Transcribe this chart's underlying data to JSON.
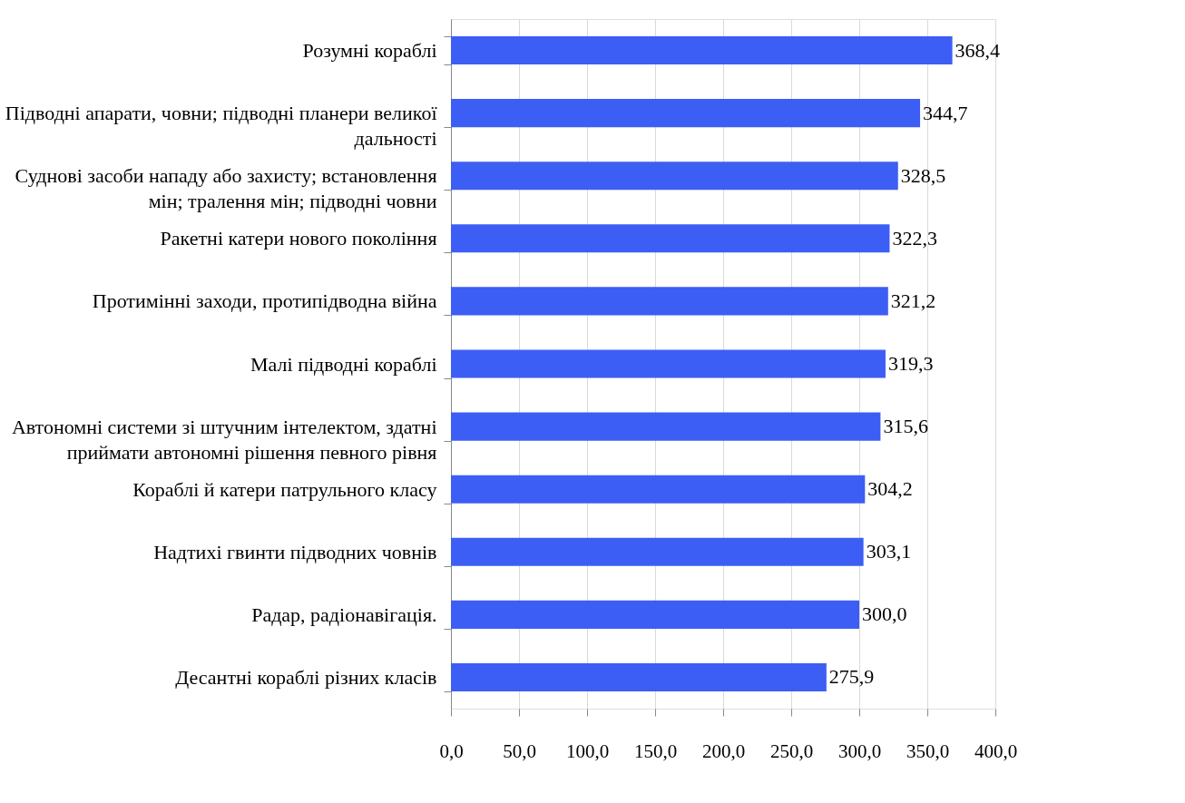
{
  "chart_data": {
    "type": "bar",
    "orientation": "horizontal",
    "categories": [
      "Розумні кораблі",
      "Підводні апарати, човни; підводні планери великої дальності",
      "Суднові засоби нападу або захисту; встановлення мін; тралення мін; підводні човни",
      "Ракетні катери нового покоління",
      "Протимінні заходи, протипідводна війна",
      "Малі підводні кораблі",
      "Автономні системи зі штучним інтелектом, здатні приймати автономні рішення певного рівня",
      "Кораблі й катери патрульного класу",
      "Надтихі гвинти підводних човнів",
      "Радар, радіонавігація.",
      "Десантні кораблі різних класів"
    ],
    "values": [
      368.4,
      344.7,
      328.5,
      322.3,
      321.2,
      319.3,
      315.6,
      304.2,
      303.1,
      300.0,
      275.9
    ],
    "value_labels": [
      "368,4",
      "344,7",
      "328,5",
      "322,3",
      "321,2",
      "319,3",
      "315,6",
      "304,2",
      "303,1",
      "300,0",
      "275,9"
    ],
    "color": "#3c5ef5",
    "xlim": [
      0,
      400
    ],
    "xticks": [
      {
        "value": 0,
        "label": "0,0"
      },
      {
        "value": 50,
        "label": "50,0"
      },
      {
        "value": 100,
        "label": "100,0"
      },
      {
        "value": 150,
        "label": "150,0"
      },
      {
        "value": 200,
        "label": "200,0"
      },
      {
        "value": 250,
        "label": "250,0"
      },
      {
        "value": 300,
        "label": "300,0"
      },
      {
        "value": 350,
        "label": "350,0"
      },
      {
        "value": 400,
        "label": "400,0"
      }
    ],
    "grid": "x"
  }
}
